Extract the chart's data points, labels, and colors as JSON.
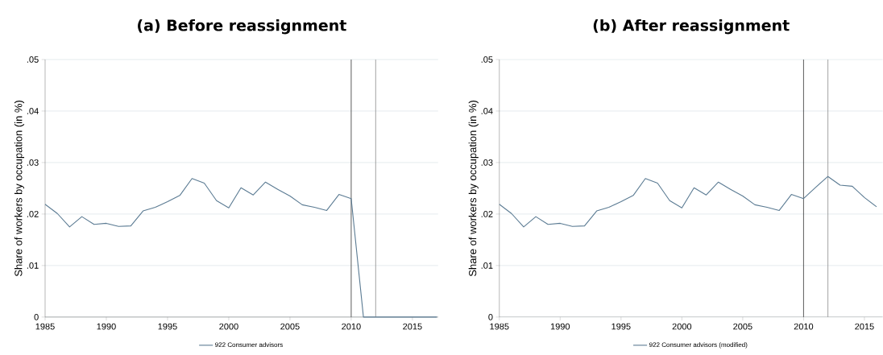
{
  "chart_data": [
    {
      "type": "line",
      "title": "(a) Before reassignment",
      "ylabel": "Share of workers by occupation (in %)",
      "x": [
        1985,
        1986,
        1987,
        1988,
        1989,
        1990,
        1991,
        1992,
        1993,
        1994,
        1995,
        1996,
        1997,
        1998,
        1999,
        2000,
        2001,
        2002,
        2003,
        2004,
        2005,
        2006,
        2007,
        2008,
        2009,
        2010,
        2011,
        2012,
        2013,
        2014,
        2015,
        2016,
        2017
      ],
      "series": [
        {
          "name": "922 Consumer advisors",
          "color": "#5b7b93",
          "values": [
            0.0219,
            0.0201,
            0.0175,
            0.0195,
            0.018,
            0.0182,
            0.0176,
            0.0177,
            0.0206,
            0.0213,
            0.0224,
            0.0236,
            0.0269,
            0.026,
            0.0226,
            0.0212,
            0.0251,
            0.0237,
            0.0262,
            0.0248,
            0.0235,
            0.0218,
            0.0213,
            0.0207,
            0.0238,
            0.023,
            0,
            0,
            0,
            0,
            0,
            0,
            0
          ]
        }
      ],
      "xlim": [
        1985,
        2017.1
      ],
      "ylim": [
        0,
        0.05
      ],
      "xticks": [
        1985,
        1990,
        1995,
        2000,
        2005,
        2010,
        2015
      ],
      "yticks": [
        0,
        {
          "value": 0.01,
          "label": ".01"
        },
        {
          "value": 0.02,
          "label": ".02"
        },
        {
          "value": 0.03,
          "label": ".03"
        },
        {
          "value": 0.04,
          "label": ".04"
        },
        {
          "value": 0.05,
          "label": ".05"
        }
      ],
      "ref_lines": [
        {
          "axis": "x",
          "value": 2010,
          "color": "#333333"
        },
        {
          "axis": "x",
          "value": 2012,
          "color": "#8c8c8c"
        }
      ],
      "grid": "y",
      "legend": "bottom"
    },
    {
      "type": "line",
      "title": "(b) After reassignment",
      "ylabel": "Share of workers by occupation (in %)",
      "x": [
        1985,
        1986,
        1987,
        1988,
        1989,
        1990,
        1991,
        1992,
        1993,
        1994,
        1995,
        1996,
        1997,
        1998,
        1999,
        2000,
        2001,
        2002,
        2003,
        2004,
        2005,
        2006,
        2007,
        2008,
        2009,
        2010,
        2011,
        2012,
        2013,
        2014,
        2015,
        2016
      ],
      "series": [
        {
          "name": "922 Consumer advisors (modified)",
          "color": "#5b7b93",
          "values": [
            0.0219,
            0.0201,
            0.0175,
            0.0195,
            0.018,
            0.0182,
            0.0176,
            0.0177,
            0.0206,
            0.0213,
            0.0224,
            0.0236,
            0.0269,
            0.026,
            0.0226,
            0.0212,
            0.0251,
            0.0237,
            0.0262,
            0.0248,
            0.0235,
            0.0218,
            0.0213,
            0.0207,
            0.0238,
            0.023,
            0.0252,
            0.0273,
            0.0256,
            0.0254,
            0.0232,
            0.0214
          ]
        }
      ],
      "xlim": [
        1985,
        2016.5
      ],
      "ylim": [
        0,
        0.05
      ],
      "xticks": [
        1985,
        1990,
        1995,
        2000,
        2005,
        2010,
        2015
      ],
      "yticks": [
        0,
        {
          "value": 0.01,
          "label": ".01"
        },
        {
          "value": 0.02,
          "label": ".02"
        },
        {
          "value": 0.03,
          "label": ".03"
        },
        {
          "value": 0.04,
          "label": ".04"
        },
        {
          "value": 0.05,
          "label": ".05"
        }
      ],
      "ref_lines": [
        {
          "axis": "x",
          "value": 2010,
          "color": "#333333"
        },
        {
          "axis": "x",
          "value": 2012,
          "color": "#8c8c8c"
        }
      ],
      "grid": "y",
      "legend": "bottom"
    }
  ]
}
